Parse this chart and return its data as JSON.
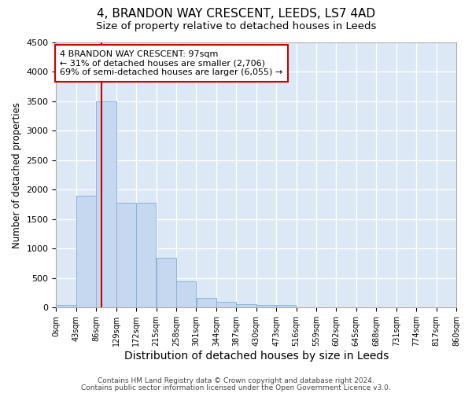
{
  "title1": "4, BRANDON WAY CRESCENT, LEEDS, LS7 4AD",
  "title2": "Size of property relative to detached houses in Leeds",
  "xlabel": "Distribution of detached houses by size in Leeds",
  "ylabel": "Number of detached properties",
  "bar_color": "#c5d8f0",
  "bar_edge_color": "#8ab4d8",
  "background_color": "#dce8f5",
  "grid_color": "#ffffff",
  "bin_edges": [
    0,
    43,
    86,
    129,
    172,
    215,
    258,
    301,
    344,
    387,
    430,
    473,
    516,
    559,
    602,
    645,
    688,
    731,
    774,
    817,
    860
  ],
  "bar_heights": [
    50,
    1900,
    3500,
    1775,
    1775,
    850,
    450,
    160,
    100,
    60,
    50,
    40,
    3,
    3,
    2,
    1,
    1,
    1,
    0,
    0
  ],
  "property_size": 97,
  "vline_color": "#cc0000",
  "ylim": [
    0,
    4500
  ],
  "yticks": [
    0,
    500,
    1000,
    1500,
    2000,
    2500,
    3000,
    3500,
    4000,
    4500
  ],
  "annotation_text": "4 BRANDON WAY CRESCENT: 97sqm\n← 31% of detached houses are smaller (2,706)\n69% of semi-detached houses are larger (6,055) →",
  "annotation_box_color": "#ffffff",
  "annotation_border_color": "#cc0000",
  "footer_line1": "Contains HM Land Registry data © Crown copyright and database right 2024.",
  "footer_line2": "Contains public sector information licensed under the Open Government Licence v3.0.",
  "title1_fontsize": 11,
  "title2_fontsize": 9.5,
  "xlabel_fontsize": 10,
  "ylabel_fontsize": 8.5,
  "tick_fontsize": 7,
  "ytick_fontsize": 8,
  "tick_labels": [
    "0sqm",
    "43sqm",
    "86sqm",
    "129sqm",
    "172sqm",
    "215sqm",
    "258sqm",
    "301sqm",
    "344sqm",
    "387sqm",
    "430sqm",
    "473sqm",
    "516sqm",
    "559sqm",
    "602sqm",
    "645sqm",
    "688sqm",
    "731sqm",
    "774sqm",
    "817sqm",
    "860sqm"
  ]
}
